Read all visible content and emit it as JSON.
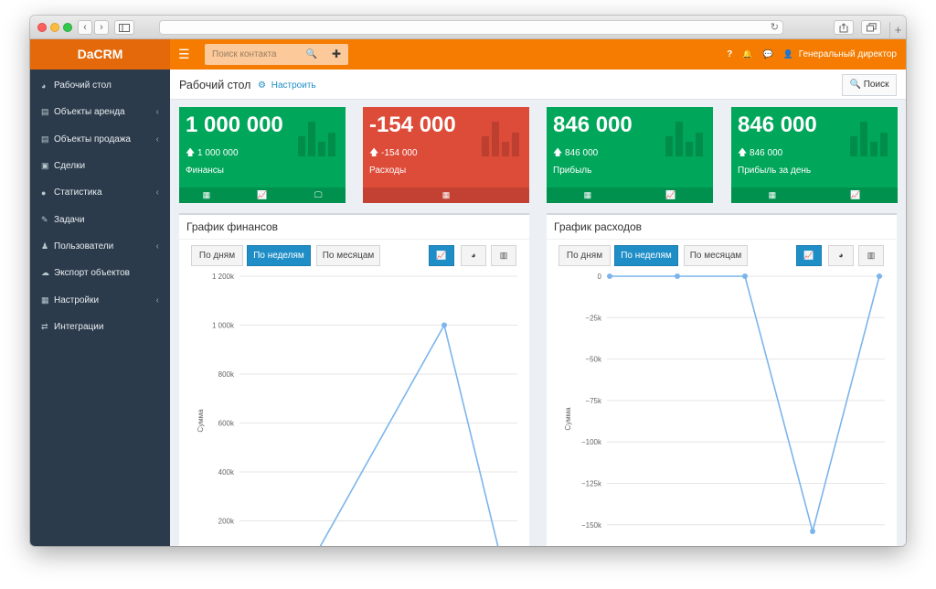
{
  "browser": {
    "back_icon": "‹",
    "forward_icon": "›",
    "reload_icon": "↻",
    "new_tab_icon": "+"
  },
  "navbar": {
    "brand": "DaCRM",
    "menu_icon": "☰",
    "search_placeholder": "Поиск контакта",
    "search_icon": "🔍",
    "add_icon": "✚",
    "help_icon": "?",
    "bell_icon": "🔔",
    "chat_icon": "💬",
    "user_icon": "👤",
    "user_name": "Генеральный директор"
  },
  "sidebar": {
    "items": [
      {
        "label": "Рабочий стол",
        "icon": "dashboard-icon",
        "glyph": "◕",
        "has_children": false
      },
      {
        "label": "Объекты аренда",
        "icon": "building-icon",
        "glyph": "▤",
        "has_children": true
      },
      {
        "label": "Объекты продажа",
        "icon": "building-icon",
        "glyph": "▤",
        "has_children": true
      },
      {
        "label": "Сделки",
        "icon": "briefcase-icon",
        "glyph": "▣",
        "has_children": false
      },
      {
        "label": "Статистика",
        "icon": "info-icon",
        "glyph": "●",
        "has_children": true
      },
      {
        "label": "Задачи",
        "icon": "edit-icon",
        "glyph": "✎",
        "has_children": false
      },
      {
        "label": "Пользователи",
        "icon": "user-icon",
        "glyph": "♟",
        "has_children": true
      },
      {
        "label": "Экспорт объектов",
        "icon": "cloud-upload-icon",
        "glyph": "☁",
        "has_children": false
      },
      {
        "label": "Настройки",
        "icon": "settings-list-icon",
        "glyph": "▦",
        "has_children": true
      },
      {
        "label": "Интеграции",
        "icon": "exchange-icon",
        "glyph": "⇄",
        "has_children": false
      }
    ],
    "chevron": "‹"
  },
  "header": {
    "title": "Рабочий стол",
    "configure_icon": "⚙",
    "configure_label": "Настроить",
    "search_button": "🔍 Поиск"
  },
  "cards": [
    {
      "value": "1 000 000",
      "sub": "🡅 1 000 000",
      "label": "Финансы",
      "color": "#00a65a"
    },
    {
      "value": "-154 000",
      "sub": "🡅 -154 000",
      "label": "Расходы",
      "color": "#dd4b39"
    },
    {
      "value": "846 000",
      "sub": "🡅 846 000",
      "label": "Прибыль",
      "color": "#00a65a"
    },
    {
      "value": "846 000",
      "sub": "🡅 846 000",
      "label": "Прибыль за день",
      "color": "#00a65a"
    }
  ],
  "card_footer_icons": {
    "table": "▦",
    "chart": "📈",
    "monitor": "🖵"
  },
  "panels": {
    "finance": {
      "title": "График финансов",
      "buttons": [
        "По дням",
        "По неделям",
        "По месяцам"
      ],
      "active_button": "По неделям",
      "view_icons": [
        "line-chart-icon",
        "pie-chart-icon",
        "bar-chart-icon"
      ]
    },
    "expenses": {
      "title": "График расходов",
      "buttons": [
        "По дням",
        "По неделям",
        "По месяцам"
      ],
      "active_button": "По неделям",
      "view_icons": [
        "line-chart-icon",
        "pie-chart-icon",
        "bar-chart-icon"
      ]
    }
  },
  "view_glyphs": [
    "📈",
    "◕",
    "▥"
  ],
  "colors": {
    "accent": "#f57c00",
    "sidebar": "#2c3b4b",
    "green": "#00a65a",
    "red": "#dd4b39",
    "primary": "#1f8ec7",
    "line": "#7cb5ec"
  },
  "chart_data": [
    {
      "type": "line",
      "title": "График финансов",
      "ylabel": "Сумма",
      "ylim": [
        0,
        1200000
      ],
      "yticks": [
        0,
        200000,
        400000,
        600000,
        800000,
        1000000,
        1200000
      ],
      "ytick_labels": [
        "0",
        "200k",
        "400k",
        "600k",
        "800k",
        "1 000k",
        "1 200k"
      ],
      "series": [
        {
          "values": [
            0,
            0,
            0,
            1000000,
            0
          ]
        }
      ],
      "grid": true
    },
    {
      "type": "line",
      "title": "График расходов",
      "ylabel": "Сумма",
      "ylim": [
        -175000,
        0
      ],
      "yticks": [
        0,
        -25000,
        -50000,
        -75000,
        -100000,
        -125000,
        -150000
      ],
      "ytick_labels": [
        "0",
        "−25k",
        "−50k",
        "−75k",
        "−100k",
        "−125k",
        "−150k"
      ],
      "series": [
        {
          "values": [
            0,
            0,
            0,
            -154000,
            0
          ]
        }
      ],
      "grid": true
    }
  ]
}
